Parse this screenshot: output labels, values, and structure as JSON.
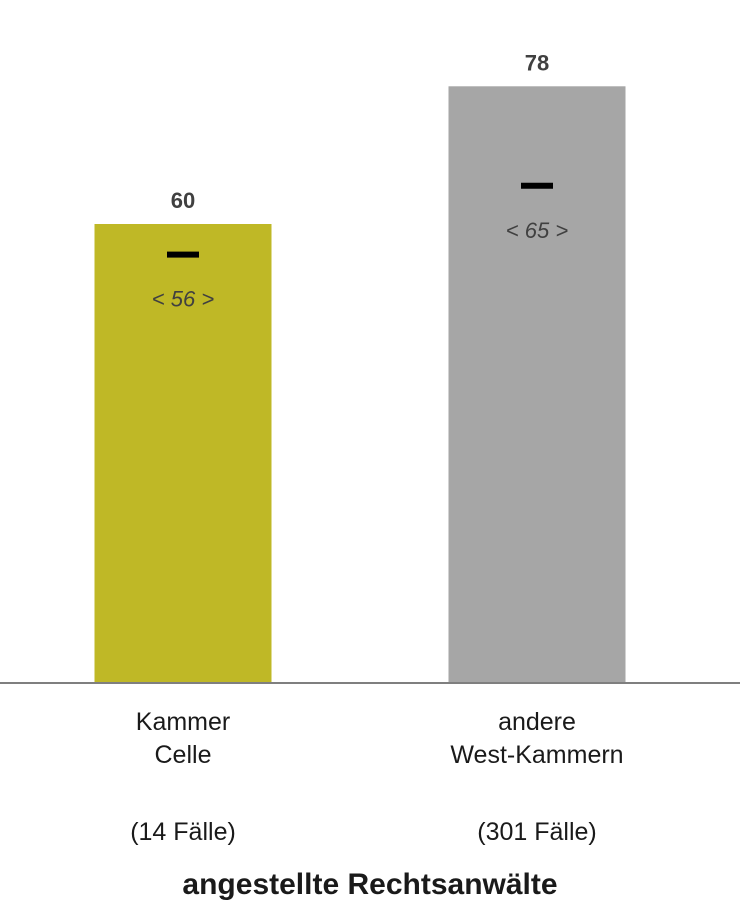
{
  "chart_data": {
    "type": "bar",
    "categories": [
      "Kammer Celle",
      "andere West-Kammern"
    ],
    "category_lines": [
      [
        "Kammer",
        "Celle"
      ],
      [
        "andere",
        "West-Kammern"
      ]
    ],
    "case_counts": [
      "(14 Fälle)",
      "(301 Fälle)"
    ],
    "values": [
      60,
      78
    ],
    "value_labels": [
      "60",
      "78"
    ],
    "comparison_markers": [
      56,
      65
    ],
    "comparison_labels": [
      "< 56 >",
      "< 65 >"
    ],
    "colors": [
      "#bfb826",
      "#a6a6a6"
    ],
    "marker_color": "#000000",
    "title": "",
    "group_label": "angestellte Rechtsanwälte",
    "ylim": [
      0,
      85
    ],
    "grid": false,
    "legend": "none"
  }
}
